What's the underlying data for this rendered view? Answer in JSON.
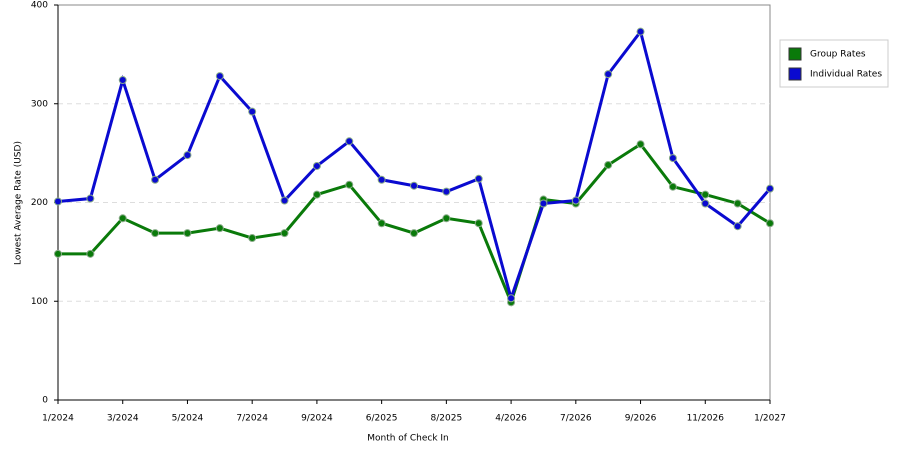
{
  "chart_data": {
    "type": "line",
    "x_label": "Month of Check In",
    "y_label": "Lowest Average Rate (USD)",
    "categories": [
      "1/2024",
      null,
      "3/2024",
      null,
      "5/2024",
      null,
      "7/2024",
      null,
      "9/2024",
      null,
      "6/2025",
      null,
      "8/2025",
      null,
      "4/2026",
      null,
      "7/2026",
      null,
      "9/2026",
      null,
      "11/2026",
      null,
      "1/2027"
    ],
    "series": [
      {
        "name": "Group Rates",
        "color": "#0a7a0a",
        "values": [
          148,
          148,
          184,
          169,
          169,
          174,
          164,
          169,
          208,
          218,
          179,
          169,
          184,
          179,
          99,
          203,
          199,
          238,
          259,
          216,
          208,
          199,
          179
        ]
      },
      {
        "name": "Individual Rates",
        "color": "#0a0ad0",
        "values": [
          201,
          204,
          324,
          223,
          248,
          328,
          292,
          202,
          237,
          262,
          223,
          217,
          211,
          224,
          103,
          199,
          202,
          330,
          373,
          245,
          199,
          176,
          214
        ]
      }
    ],
    "ylim": [
      0,
      400
    ],
    "yticks": [
      0,
      100,
      200,
      300,
      400
    ],
    "grid": true,
    "legend": "right"
  }
}
